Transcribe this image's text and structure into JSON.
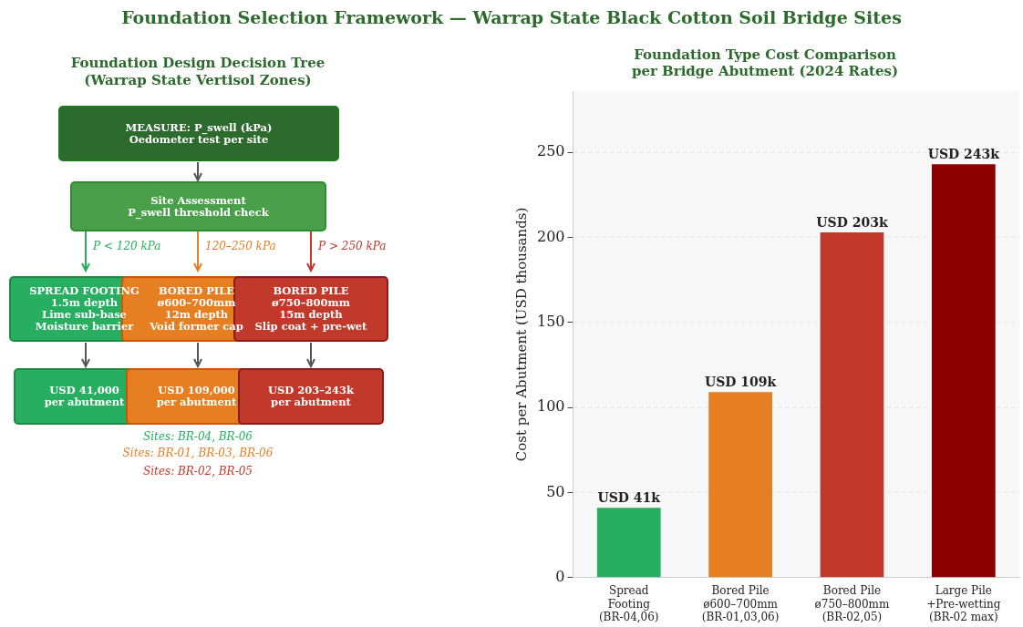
{
  "chart_data": [
    {
      "type": "other",
      "title": "Foundation Selection Framework — Warrap State Black Cotton Soil Bridge Sites",
      "subtitle": "Foundation Design Decision Tree\n(Warrap State Vertisol Zones)",
      "annotations": [
        "MEASURE: P_swell (kPa)\nOedometer test per site",
        "Site Assessment\nP_swell threshold check",
        "P < 120 kPa",
        "120–250 kPa",
        "P > 250 kPa",
        "SPREAD FOOTING\n1.5m depth\nLime sub-base\nMoisture barrier",
        "BORED PILE\nø600–700mm\n12m depth\nVoid former cap",
        "BORED PILE\nø750–800mm\n15m depth\nSlip coat + pre-wet",
        "USD 41,000\nper abutment",
        "USD 109,000\nper abutment",
        "USD 203–243k\nper abutment",
        "Sites: BR-04, BR-06",
        "Sites: BR-01, BR-03, BR-06",
        "Sites: BR-02, BR-05"
      ]
    },
    {
      "type": "bar",
      "title": "Foundation Type Cost Comparison\nper Bridge Abutment (2024 Rates)",
      "ylabel": "Cost per Abutment (USD thousands)",
      "categories": [
        "Spread\nFooting\n(BR-04,06)",
        "Bored Pile\nø600–700mm\n(BR-01,03,06)",
        "Bored Pile\nø750–800mm\n(BR-02,05)",
        "Large Pile\n+Pre-wetting\n(BR-02 max)"
      ],
      "values": [
        41,
        109,
        203,
        243
      ],
      "colors": [
        "#27ae60",
        "#e67e22",
        "#c0392b",
        "#8b0000"
      ],
      "value_labels": [
        "USD 41k",
        "USD 109k",
        "USD 203k",
        "USD 243k"
      ],
      "ylim": [
        0,
        286
      ],
      "yticks": [
        0,
        50,
        100,
        150,
        200,
        250
      ],
      "grid": "y",
      "legend": false
    }
  ]
}
